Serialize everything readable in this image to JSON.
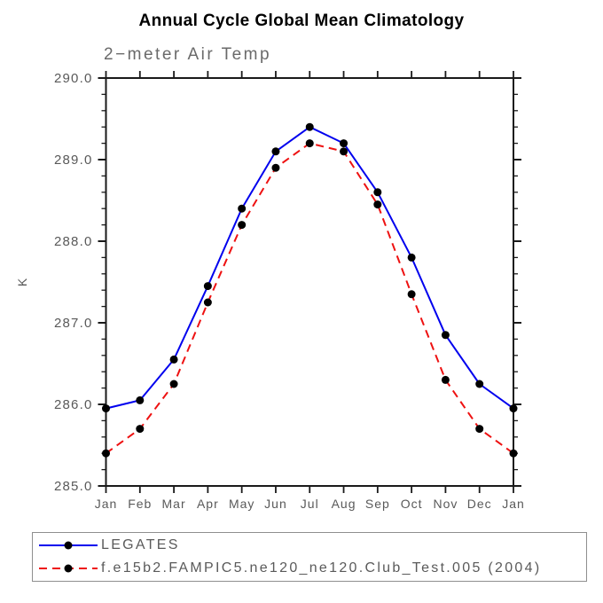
{
  "header": {
    "title": "Annual Cycle Global Mean Climatology"
  },
  "chart_data": {
    "type": "line",
    "title": "Annual Cycle Global Mean Climatology",
    "subtitle": "2−meter Air Temp",
    "ylabel": "K",
    "xlabel": "",
    "ylim": [
      285.0,
      290.0
    ],
    "ytick_step": 1.0,
    "yminor_step": 0.2,
    "ytick_labels": [
      "285.0",
      "286.0",
      "287.0",
      "288.0",
      "289.0",
      "290.0"
    ],
    "categories": [
      "Jan",
      "Feb",
      "Mar",
      "Apr",
      "May",
      "Jun",
      "Jul",
      "Aug",
      "Sep",
      "Oct",
      "Nov",
      "Dec",
      "Jan"
    ],
    "grid": false,
    "legend_position": "bottom-left-box",
    "series": [
      {
        "name": "LEGATES",
        "color": "#0000ee",
        "style": "solid",
        "marker": "filled-circle",
        "marker_color": "#000000",
        "values": [
          285.95,
          286.05,
          286.55,
          287.45,
          288.4,
          289.1,
          289.4,
          289.2,
          288.6,
          287.8,
          286.85,
          286.25,
          285.95
        ]
      },
      {
        "name": "f.e15b2.FAMPIC5.ne120_ne120.Club_Test.005 (2004)",
        "color": "#ee1111",
        "style": "dashed",
        "marker": "filled-circle",
        "marker_color": "#000000",
        "values": [
          285.4,
          285.7,
          286.25,
          287.25,
          288.2,
          288.9,
          289.2,
          289.1,
          288.45,
          287.35,
          286.3,
          285.7,
          285.4
        ]
      }
    ]
  },
  "colors": {
    "axis": "#1a1a1a",
    "tick_label": "#595959",
    "subtitle": "#6a6a6a",
    "title": "#000000",
    "legend_border": "#8f8f8f"
  }
}
